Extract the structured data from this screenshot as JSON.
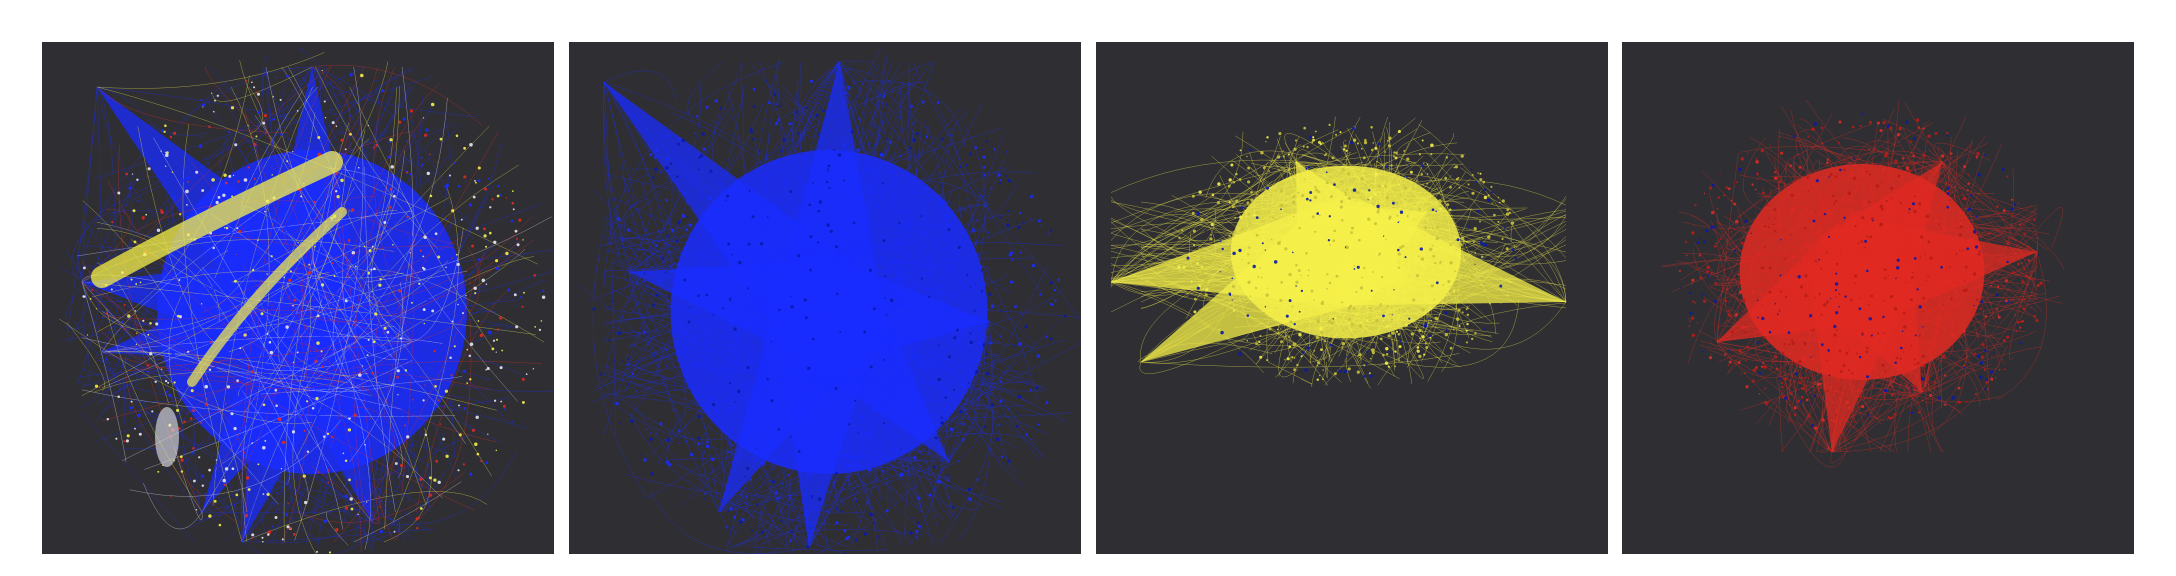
{
  "figure": {
    "panels": [
      {
        "id": "combined",
        "colors": [
          "#1a2cff",
          "#f5f04a",
          "#e02a22",
          "#e8e8f0"
        ]
      },
      {
        "id": "blue",
        "colors": [
          "#1a2cff"
        ]
      },
      {
        "id": "yellow",
        "colors": [
          "#f5f04a"
        ]
      },
      {
        "id": "red",
        "colors": [
          "#e02a22"
        ]
      }
    ],
    "background_color": "#2f2f33",
    "page_background": "#ffffff"
  }
}
